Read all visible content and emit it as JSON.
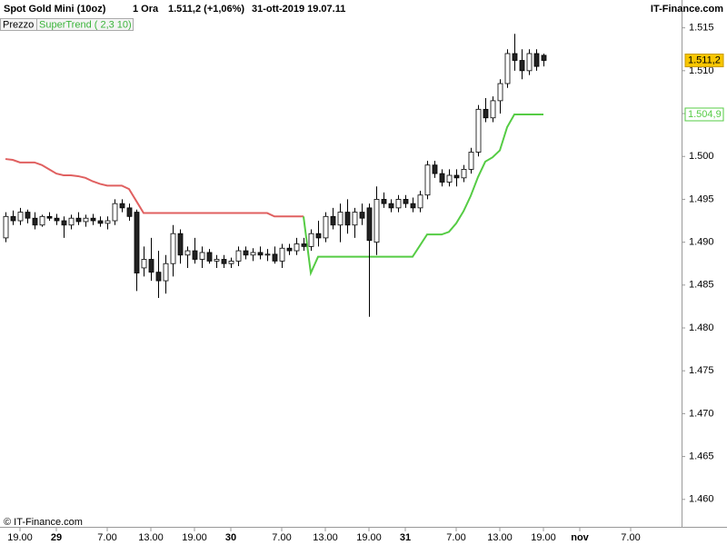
{
  "chart_data": {
    "type": "candlestick",
    "title": "Spot Gold Mini (10oz)",
    "interval": "1 Ora",
    "last_change": "1.511,2 (+1,06%)",
    "timestamp": "31-ott-2019 19.07.11",
    "brand": "IT-Finance.com",
    "copyright": "© IT-Finance.com",
    "categories": [
      null,
      null,
      "19.00",
      null,
      null,
      null,
      null,
      "29",
      null,
      null,
      null,
      null,
      null,
      null,
      "7.00",
      null,
      null,
      null,
      null,
      null,
      "13.00",
      null,
      null,
      null,
      null,
      null,
      "19.00",
      null,
      null,
      null,
      null,
      "30",
      null,
      null,
      null,
      null,
      null,
      null,
      "7.00",
      null,
      null,
      null,
      null,
      null,
      "13.00",
      null,
      null,
      null,
      null,
      null,
      "19.00",
      null,
      null,
      null,
      null,
      "31",
      null,
      null,
      null,
      null,
      null,
      null,
      "7.00",
      null,
      null,
      null,
      null,
      null,
      "13.00",
      null,
      null,
      null,
      null,
      null,
      "19.00",
      null,
      null,
      null,
      null,
      "nov",
      null,
      null,
      null,
      null,
      null,
      null,
      "7.00",
      null,
      null,
      null,
      null,
      null,
      null
    ],
    "series": [
      {
        "name": "Prezzo",
        "open": [
          1.4905,
          1.493,
          1.4925,
          1.4935,
          1.4928,
          1.492,
          1.493,
          1.4928,
          1.4925,
          1.492,
          1.4928,
          1.4924,
          1.4928,
          1.4925,
          1.4922,
          1.4925,
          1.4945,
          1.494,
          1.4935,
          1.487,
          1.488,
          1.4865,
          1.4855,
          1.4875,
          1.491,
          1.4885,
          1.489,
          1.488,
          1.4888,
          1.4878,
          1.488,
          1.4875,
          1.4878,
          1.489,
          1.4885,
          1.4888,
          1.4885,
          1.4886,
          1.4878,
          1.4893,
          1.489,
          1.4898,
          1.4895,
          1.491,
          1.4905,
          1.493,
          1.492,
          1.4935,
          1.492,
          1.4935,
          1.494,
          1.49,
          1.495,
          1.4945,
          1.494,
          1.495,
          1.4945,
          1.494,
          1.4955,
          1.499,
          1.498,
          1.497,
          1.4978,
          1.4975,
          1.4985,
          1.5005,
          1.5055,
          1.5045,
          1.5065,
          1.5085,
          1.512,
          1.5112,
          1.51,
          1.512,
          1.5118,
          null,
          null,
          null,
          null,
          null,
          null,
          null,
          null,
          null,
          null,
          null,
          null,
          null,
          null,
          null,
          null,
          null,
          null
        ],
        "high": [
          1.4935,
          1.4937,
          1.494,
          1.4938,
          1.4935,
          1.4932,
          1.4935,
          1.4933,
          1.493,
          1.4932,
          1.4935,
          1.4932,
          1.4933,
          1.493,
          1.493,
          1.495,
          1.495,
          1.4945,
          1.4938,
          1.4895,
          1.4905,
          1.489,
          1.4885,
          1.492,
          1.4915,
          1.4895,
          1.4905,
          1.4895,
          1.4892,
          1.4885,
          1.4885,
          1.4882,
          1.4895,
          1.4895,
          1.4893,
          1.4895,
          1.4892,
          1.4895,
          1.4898,
          1.4898,
          1.4905,
          1.4905,
          1.4915,
          1.4925,
          1.4935,
          1.494,
          1.4945,
          1.495,
          1.494,
          1.4945,
          1.4945,
          1.4965,
          1.4958,
          1.495,
          1.4955,
          1.4955,
          1.4952,
          1.496,
          1.4995,
          1.4995,
          1.4985,
          1.4985,
          1.4985,
          1.499,
          1.501,
          1.506,
          1.5068,
          1.507,
          1.509,
          1.5125,
          1.5143,
          1.5125,
          1.5125,
          1.5125,
          1.512,
          null,
          null,
          null,
          null,
          null,
          null,
          null,
          null,
          null,
          null,
          null,
          null,
          null,
          null,
          null,
          null,
          null,
          null
        ],
        "low": [
          1.49,
          1.492,
          1.492,
          1.4922,
          1.4915,
          1.4918,
          1.4925,
          1.492,
          1.4905,
          1.4915,
          1.492,
          1.4918,
          1.492,
          1.4918,
          1.4915,
          1.492,
          1.4935,
          1.4925,
          1.4843,
          1.486,
          1.4855,
          1.4835,
          1.484,
          1.486,
          1.4875,
          1.487,
          1.4875,
          1.487,
          1.4875,
          1.487,
          1.487,
          1.487,
          1.4872,
          1.488,
          1.4878,
          1.488,
          1.4878,
          1.4875,
          1.487,
          1.4885,
          1.4885,
          1.489,
          1.489,
          1.4895,
          1.49,
          1.4915,
          1.49,
          1.491,
          1.4905,
          1.492,
          1.4813,
          1.4885,
          1.494,
          1.4935,
          1.4935,
          1.494,
          1.4935,
          1.4935,
          1.495,
          1.4975,
          1.4965,
          1.4965,
          1.4965,
          1.497,
          1.498,
          1.5,
          1.504,
          1.504,
          1.505,
          1.508,
          1.51,
          1.509,
          1.5095,
          1.51,
          1.5105,
          null,
          null,
          null,
          null,
          null,
          null,
          null,
          null,
          null,
          null,
          null,
          null,
          null,
          null,
          null,
          null,
          null,
          null
        ],
        "close": [
          1.493,
          1.4925,
          1.4935,
          1.4928,
          1.492,
          1.493,
          1.4928,
          1.4925,
          1.492,
          1.4928,
          1.4924,
          1.4928,
          1.4925,
          1.4922,
          1.4925,
          1.4945,
          1.494,
          1.493,
          1.4864,
          1.488,
          1.4865,
          1.4855,
          1.4875,
          1.491,
          1.4885,
          1.489,
          1.488,
          1.4888,
          1.4878,
          1.488,
          1.4875,
          1.4878,
          1.489,
          1.4885,
          1.4888,
          1.4885,
          1.4886,
          1.4878,
          1.4893,
          1.489,
          1.4898,
          1.4895,
          1.491,
          1.4905,
          1.493,
          1.492,
          1.4935,
          1.492,
          1.4935,
          1.4928,
          1.4902,
          1.495,
          1.4945,
          1.494,
          1.495,
          1.4945,
          1.494,
          1.4955,
          1.499,
          1.498,
          1.497,
          1.4978,
          1.4975,
          1.4985,
          1.5005,
          1.5055,
          1.5045,
          1.5065,
          1.5085,
          1.512,
          1.5112,
          1.51,
          1.512,
          1.5105,
          1.5112,
          null,
          null,
          null,
          null,
          null,
          null,
          null,
          null,
          null,
          null,
          null,
          null,
          null,
          null,
          null,
          null,
          null,
          null
        ]
      }
    ],
    "supertrend": {
      "name": "SuperTrend ( 2,3 10)",
      "down": {
        "color": "#e06060",
        "values": [
          1.4997,
          1.4996,
          1.4993,
          1.4993,
          1.4993,
          1.499,
          1.4985,
          1.498,
          1.4978,
          1.4978,
          1.4977,
          1.4975,
          1.4971,
          1.4968,
          1.4966,
          1.4966,
          1.4966,
          1.4962,
          1.4948,
          1.4934,
          1.4934,
          1.4934,
          1.4934,
          1.4934,
          1.4934,
          1.4934,
          1.4934,
          1.4934,
          1.4934,
          1.4934,
          1.4934,
          1.4934,
          1.4934,
          1.4934,
          1.4934,
          1.4934,
          1.4934,
          1.493,
          1.493,
          1.493,
          1.493,
          1.493,
          null,
          null,
          null,
          null,
          null,
          null,
          null,
          null,
          null,
          null,
          null,
          null,
          null,
          null,
          null,
          null,
          null,
          null,
          null,
          null,
          null,
          null,
          null,
          null,
          null,
          null,
          null,
          null,
          null,
          null,
          null,
          null,
          null,
          null,
          null,
          null,
          null,
          null,
          null,
          null,
          null,
          null,
          null,
          null,
          null,
          null,
          null,
          null,
          null,
          null,
          null
        ]
      },
      "up": {
        "color": "#55cc44",
        "values": [
          null,
          null,
          null,
          null,
          null,
          null,
          null,
          null,
          null,
          null,
          null,
          null,
          null,
          null,
          null,
          null,
          null,
          null,
          null,
          null,
          null,
          null,
          null,
          null,
          null,
          null,
          null,
          null,
          null,
          null,
          null,
          null,
          null,
          null,
          null,
          null,
          null,
          null,
          null,
          null,
          null,
          1.493,
          1.4864,
          1.4883,
          1.4883,
          1.4883,
          1.4883,
          1.4883,
          1.4883,
          1.4883,
          1.4883,
          1.4883,
          1.4883,
          1.4883,
          1.4883,
          1.4883,
          1.4883,
          1.4896,
          1.4909,
          1.4909,
          1.4909,
          1.4912,
          1.4922,
          1.4936,
          1.4954,
          1.4976,
          1.4994,
          1.4999,
          1.5007,
          1.5034,
          1.5049,
          1.5049,
          1.5049,
          1.5049,
          1.5049,
          null,
          null,
          null,
          null,
          null,
          null,
          null,
          null,
          null,
          null,
          null,
          null,
          null,
          null,
          null,
          null,
          null,
          null
        ]
      }
    },
    "price_label": {
      "value": 1.5112,
      "label": "1.511,2"
    },
    "supertrend_label": {
      "value": 1.5049,
      "label": "1.504,9"
    },
    "ylim": [
      1.4568,
      1.5174
    ],
    "yticks": [
      {
        "value": 1.515,
        "label": "1.515"
      },
      {
        "value": 1.51,
        "label": "1.510"
      },
      {
        "value": 1.505,
        "label": "1.505"
      },
      {
        "value": 1.5,
        "label": "1.500"
      },
      {
        "value": 1.495,
        "label": "1.495"
      },
      {
        "value": 1.49,
        "label": "1.490"
      },
      {
        "value": 1.485,
        "label": "1.485"
      },
      {
        "value": 1.48,
        "label": "1.480"
      },
      {
        "value": 1.475,
        "label": "1.475"
      },
      {
        "value": 1.47,
        "label": "1.470"
      },
      {
        "value": 1.465,
        "label": "1.465"
      },
      {
        "value": 1.46,
        "label": "1.460"
      }
    ]
  }
}
